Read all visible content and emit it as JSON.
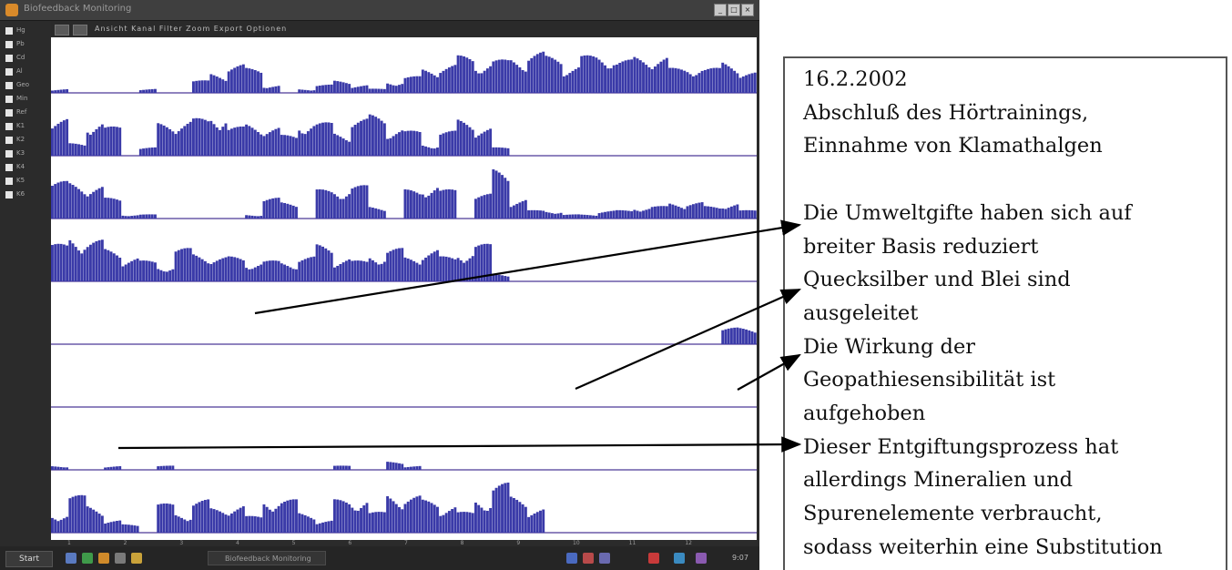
{
  "window": {
    "title": "Biofeedback Monitoring",
    "minimize_glyph": "_",
    "maximize_glyph": "□",
    "close_glyph": "×"
  },
  "toolbar": {
    "text": "Ansicht  Kanal  Filter  Zoom  Export  Optionen"
  },
  "side_panel": {
    "channels": [
      "Hg",
      "Pb",
      "Cd",
      "Al",
      "Geo",
      "Min",
      "Ref",
      "K1",
      "K2",
      "K3",
      "K4",
      "K5",
      "K6"
    ]
  },
  "chart_data": {
    "type": "bar",
    "title": "",
    "bar_color": "#3a3aa8",
    "baseline_color": "#6a5aa8",
    "tracks": [
      {
        "name": "",
        "amplitude": [
          1,
          0,
          0,
          0,
          0,
          1,
          0,
          0,
          3,
          5,
          7,
          6,
          2,
          0,
          1,
          2,
          3,
          2,
          1,
          3,
          4,
          6,
          7,
          9,
          8,
          8,
          9,
          10,
          9,
          7,
          9,
          10,
          8,
          9,
          9,
          6,
          7,
          6,
          8,
          5
        ]
      },
      {
        "name": "",
        "amplitude": [
          9,
          3,
          9,
          7,
          0,
          2,
          8,
          9,
          9,
          11,
          7,
          8,
          7,
          5,
          9,
          8,
          6,
          9,
          10,
          7,
          6,
          3,
          6,
          9,
          7,
          2,
          0,
          0,
          0,
          0,
          0,
          0,
          0,
          0,
          0,
          0,
          0,
          0,
          0,
          0
        ]
      },
      {
        "name": "",
        "amplitude": [
          9,
          9,
          8,
          5,
          1,
          1,
          0,
          0,
          0,
          0,
          0,
          1,
          5,
          4,
          0,
          7,
          8,
          8,
          3,
          0,
          7,
          9,
          7,
          0,
          6,
          12,
          5,
          2,
          2,
          1,
          1,
          2,
          2,
          3,
          3,
          4,
          4,
          3,
          4,
          2
        ]
      },
      {
        "name": "",
        "amplitude": [
          9,
          12,
          10,
          8,
          6,
          5,
          4,
          8,
          7,
          6,
          6,
          5,
          5,
          5,
          6,
          9,
          6,
          5,
          7,
          8,
          6,
          8,
          6,
          8,
          9,
          2,
          0,
          0,
          0,
          0,
          0,
          0,
          0,
          0,
          0,
          0,
          0,
          0,
          0,
          0
        ]
      },
      {
        "name": "",
        "amplitude": [
          0,
          0,
          0,
          0,
          0,
          0,
          0,
          0,
          0,
          0,
          0,
          0,
          0,
          0,
          0,
          0,
          0,
          0,
          0,
          0,
          0,
          0,
          0,
          0,
          0,
          0,
          0,
          0,
          0,
          0,
          0,
          0,
          0,
          0,
          0,
          0,
          0,
          0,
          4,
          4
        ]
      },
      {
        "name": "",
        "amplitude": [
          0,
          0,
          0,
          0,
          0,
          0,
          0,
          0,
          0,
          0,
          0,
          0,
          0,
          0,
          0,
          0,
          0,
          0,
          0,
          0,
          0,
          0,
          0,
          0,
          0,
          0,
          0,
          0,
          0,
          0,
          0,
          0,
          0,
          0,
          0,
          0,
          0,
          0,
          0,
          0
        ]
      },
      {
        "name": "",
        "amplitude": [
          1,
          0,
          0,
          1,
          0,
          0,
          1,
          0,
          0,
          0,
          0,
          0,
          0,
          0,
          0,
          0,
          1,
          0,
          0,
          2,
          1,
          0,
          0,
          0,
          0,
          0,
          0,
          0,
          0,
          0,
          0,
          0,
          0,
          0,
          0,
          0,
          0,
          0,
          0,
          0
        ]
      },
      {
        "name": "",
        "amplitude": [
          5,
          9,
          7,
          3,
          2,
          0,
          7,
          5,
          8,
          6,
          7,
          4,
          9,
          8,
          5,
          3,
          8,
          9,
          5,
          10,
          9,
          8,
          7,
          5,
          9,
          12,
          9,
          6,
          0,
          0,
          0,
          0,
          0,
          0,
          0,
          0,
          0,
          0,
          0,
          0
        ]
      }
    ],
    "xlabel": "",
    "ylabel": ""
  },
  "time_axis": {
    "ticks": [
      "1",
      "2",
      "3",
      "4",
      "5",
      "6",
      "7",
      "8",
      "9",
      "10",
      "11",
      "12"
    ]
  },
  "taskbar": {
    "start_label": "Start",
    "task_label": "Biofeedback Monitoring",
    "clock": "9:07"
  },
  "annotation": {
    "lines": [
      "16.2.2002",
      "Abschluß des Hörtrainings,",
      "Einnahme von Klamathalgen",
      "",
      "Die Umweltgifte haben sich auf",
      "breiter Basis reduziert",
      "Quecksilber und Blei sind",
      "ausgeleitet",
      "Die Wirkung der",
      "Geopathiesensibilität ist",
      "aufgehoben",
      "Dieser Entgiftungsprozess hat",
      "allerdings Mineralien und",
      "Spurenelemente verbraucht,",
      "sodass weiterhin eine Substitution"
    ]
  },
  "colors": {
    "arrow": "#000000",
    "window_bg": "#2b2b2b",
    "plot_bg": "#ffffff"
  }
}
